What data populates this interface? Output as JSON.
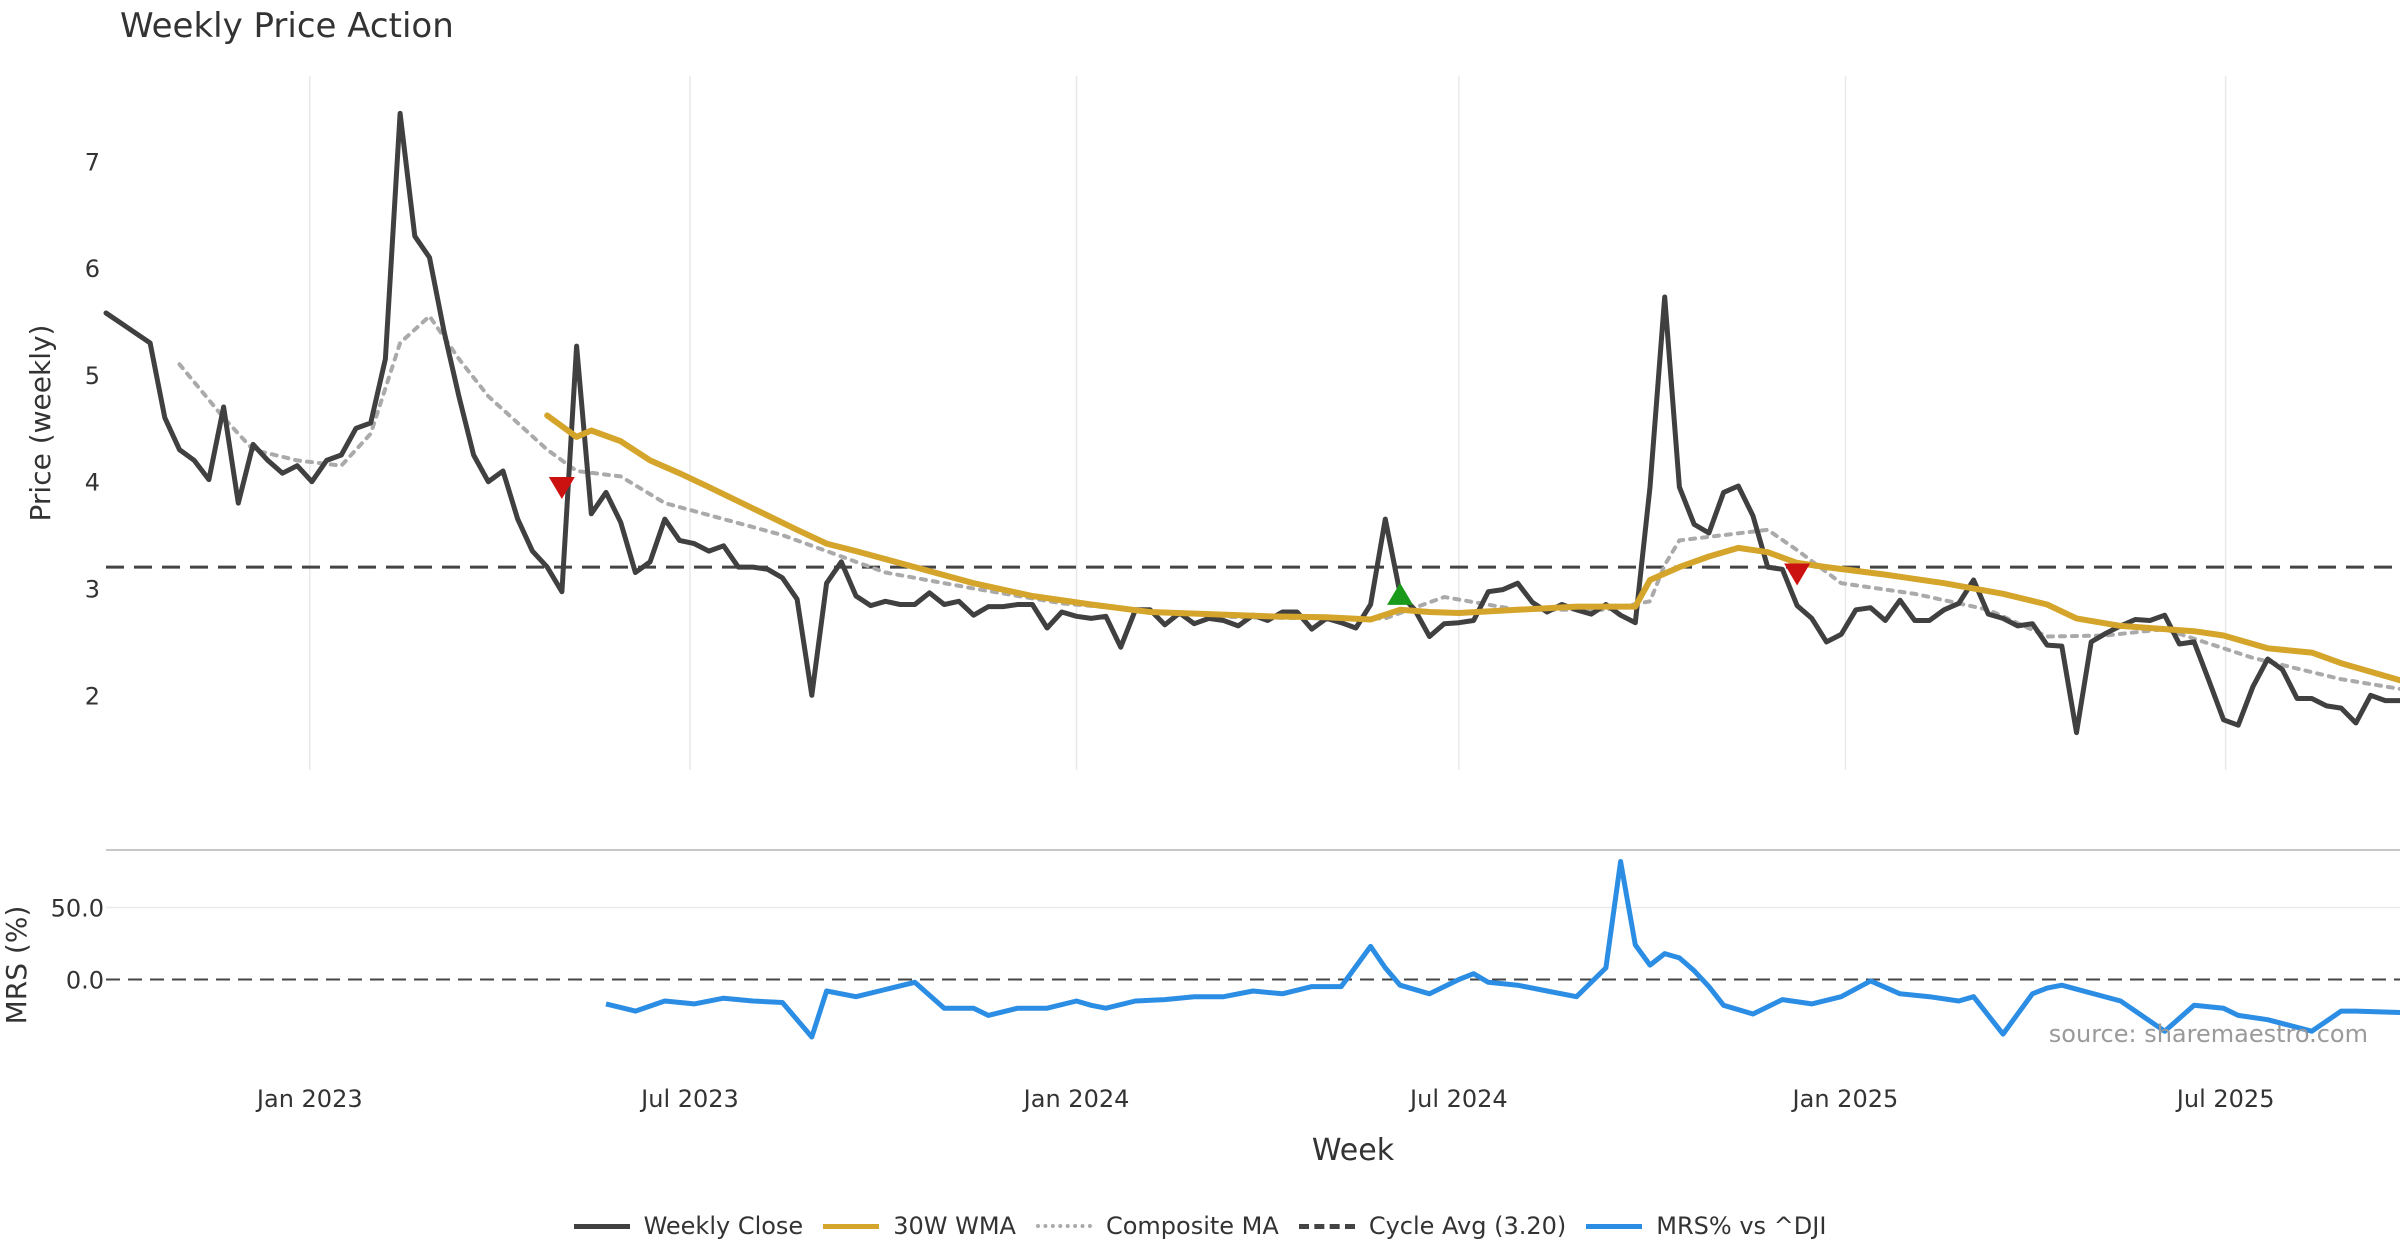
{
  "title": "Weekly Price Action",
  "watermark": "source: sharemaestro.com",
  "colors": {
    "close": "#404040",
    "wma": "#d4a52a",
    "composite": "#aaaaaa",
    "cycle": "#444444",
    "mrs": "#2b8de3",
    "sell": "#cc1111",
    "buy": "#1a9a1a",
    "grid": "#e9e9e9"
  },
  "legend": [
    {
      "label": "Weekly Close",
      "style": "solid",
      "color": "#404040"
    },
    {
      "label": "30W WMA",
      "style": "solid",
      "color": "#d4a52a"
    },
    {
      "label": "Composite MA",
      "style": "dotted",
      "color": "#aaaaaa"
    },
    {
      "label": "Cycle Avg (3.20)",
      "style": "dashed",
      "color": "#444444"
    },
    {
      "label": "MRS% vs ^DJI",
      "style": "solid",
      "color": "#2b8de3"
    }
  ],
  "chart_data": [
    {
      "type": "line",
      "title": "Weekly Price Action",
      "xlabel": "Week",
      "ylabel": "Price (weekly)",
      "x_type": "date",
      "xlim": [
        "2022-09-26",
        "2025-09-22"
      ],
      "ylim": [
        1.3,
        7.8
      ],
      "yticks": [
        2,
        3,
        4,
        5,
        6,
        7
      ],
      "xticks": [
        {
          "date": "2023-01-01",
          "label": "Jan 2023"
        },
        {
          "date": "2023-07-01",
          "label": "Jul 2023"
        },
        {
          "date": "2024-01-01",
          "label": "Jan 2024"
        },
        {
          "date": "2024-07-01",
          "label": "Jul 2024"
        },
        {
          "date": "2025-01-01",
          "label": "Jan 2025"
        },
        {
          "date": "2025-07-01",
          "label": "Jul 2025"
        }
      ],
      "grid": "vertical",
      "reference_line": {
        "name": "Cycle Avg (3.20)",
        "value": 3.2
      },
      "series": [
        {
          "name": "Weekly Close",
          "x": [
            "2022-09-26",
            "2022-10-17",
            "2022-10-24",
            "2022-10-31",
            "2022-11-07",
            "2022-11-14",
            "2022-11-21",
            "2022-11-28",
            "2022-12-05",
            "2022-12-12",
            "2022-12-19",
            "2022-12-26",
            "2023-01-02",
            "2023-01-09",
            "2023-01-16",
            "2023-01-23",
            "2023-01-30",
            "2023-02-06",
            "2023-02-13",
            "2023-02-20",
            "2023-02-27",
            "2023-03-06",
            "2023-03-13",
            "2023-03-20",
            "2023-03-27",
            "2023-04-03",
            "2023-04-10",
            "2023-04-17",
            "2023-04-24",
            "2023-05-01",
            "2023-05-08",
            "2023-05-15",
            "2023-05-22",
            "2023-05-29",
            "2023-06-05",
            "2023-06-12",
            "2023-06-19",
            "2023-06-26",
            "2023-07-03",
            "2023-07-10",
            "2023-07-17",
            "2023-07-24",
            "2023-07-31",
            "2023-08-07",
            "2023-08-14",
            "2023-08-21",
            "2023-08-28",
            "2023-09-04",
            "2023-09-11",
            "2023-09-18",
            "2023-09-25",
            "2023-10-02",
            "2023-10-09",
            "2023-10-16",
            "2023-10-23",
            "2023-10-30",
            "2023-11-06",
            "2023-11-13",
            "2023-11-20",
            "2023-11-27",
            "2023-12-04",
            "2023-12-11",
            "2023-12-18",
            "2023-12-25",
            "2024-01-01",
            "2024-01-08",
            "2024-01-15",
            "2024-01-22",
            "2024-01-29",
            "2024-02-05",
            "2024-02-12",
            "2024-02-19",
            "2024-02-26",
            "2024-03-04",
            "2024-03-11",
            "2024-03-18",
            "2024-03-25",
            "2024-04-01",
            "2024-04-08",
            "2024-04-15",
            "2024-04-22",
            "2024-04-29",
            "2024-05-06",
            "2024-05-13",
            "2024-05-20",
            "2024-05-27",
            "2024-06-03",
            "2024-06-10",
            "2024-06-17",
            "2024-06-24",
            "2024-07-01",
            "2024-07-08",
            "2024-07-15",
            "2024-07-22",
            "2024-07-29",
            "2024-08-05",
            "2024-08-12",
            "2024-08-19",
            "2024-08-26",
            "2024-09-02",
            "2024-09-09",
            "2024-09-16",
            "2024-09-23",
            "2024-09-30",
            "2024-10-07",
            "2024-10-14",
            "2024-10-21",
            "2024-10-28",
            "2024-11-04",
            "2024-11-11",
            "2024-11-18",
            "2024-11-25",
            "2024-12-02",
            "2024-12-09",
            "2024-12-16",
            "2024-12-23",
            "2024-12-30",
            "2025-01-06",
            "2025-01-13",
            "2025-01-20",
            "2025-01-27",
            "2025-02-03",
            "2025-02-10",
            "2025-02-17",
            "2025-02-24",
            "2025-03-03",
            "2025-03-10",
            "2025-03-17",
            "2025-03-24",
            "2025-03-31",
            "2025-04-07",
            "2025-04-14",
            "2025-04-21",
            "2025-04-28",
            "2025-05-05",
            "2025-05-12",
            "2025-05-19",
            "2025-05-26",
            "2025-06-02",
            "2025-06-09",
            "2025-06-16",
            "2025-06-23",
            "2025-06-30",
            "2025-07-07",
            "2025-07-14",
            "2025-07-21",
            "2025-07-28",
            "2025-08-04",
            "2025-08-11",
            "2025-08-18",
            "2025-08-25",
            "2025-09-01",
            "2025-09-08",
            "2025-09-15",
            "2025-09-22"
          ],
          "y": [
            5.58,
            5.3,
            4.6,
            4.3,
            4.2,
            4.02,
            4.7,
            3.8,
            4.35,
            4.2,
            4.08,
            4.15,
            4.0,
            4.2,
            4.25,
            4.5,
            4.55,
            5.15,
            7.45,
            6.3,
            6.1,
            5.4,
            4.8,
            4.25,
            4.0,
            4.1,
            3.65,
            3.35,
            3.2,
            2.97,
            5.27,
            3.7,
            3.9,
            3.62,
            3.15,
            3.25,
            3.65,
            3.45,
            3.42,
            3.35,
            3.4,
            3.2,
            3.2,
            3.18,
            3.1,
            2.9,
            2.0,
            3.05,
            3.25,
            2.93,
            2.84,
            2.88,
            2.85,
            2.85,
            2.96,
            2.85,
            2.88,
            2.75,
            2.83,
            2.83,
            2.85,
            2.85,
            2.63,
            2.78,
            2.74,
            2.72,
            2.74,
            2.45,
            2.8,
            2.8,
            2.66,
            2.77,
            2.67,
            2.72,
            2.7,
            2.65,
            2.75,
            2.7,
            2.78,
            2.78,
            2.62,
            2.72,
            2.68,
            2.63,
            2.85,
            3.65,
            2.95,
            2.8,
            2.55,
            2.67,
            2.68,
            2.7,
            2.97,
            2.99,
            3.05,
            2.87,
            2.78,
            2.85,
            2.8,
            2.76,
            2.85,
            2.75,
            2.68,
            3.95,
            5.73,
            3.95,
            3.6,
            3.52,
            3.9,
            3.96,
            3.68,
            3.2,
            3.18,
            2.84,
            2.72,
            2.5,
            2.57,
            2.8,
            2.82,
            2.7,
            2.89,
            2.7,
            2.7,
            2.8,
            2.86,
            3.08,
            2.76,
            2.72,
            2.65,
            2.67,
            2.47,
            2.46,
            1.65,
            2.5,
            2.58,
            2.65,
            2.71,
            2.7,
            2.75,
            2.48,
            2.5,
            2.14,
            1.77,
            1.72,
            2.08,
            2.34,
            2.24,
            1.97,
            1.97,
            1.9,
            1.88,
            1.74,
            2.0,
            1.95,
            1.95
          ]
        },
        {
          "name": "30W WMA",
          "x": [
            "2023-04-24",
            "2023-05-08",
            "2023-05-15",
            "2023-05-29",
            "2023-06-12",
            "2023-06-26",
            "2023-07-10",
            "2023-07-31",
            "2023-08-21",
            "2023-09-04",
            "2023-09-18",
            "2023-10-16",
            "2023-11-13",
            "2023-12-11",
            "2024-01-08",
            "2024-02-05",
            "2024-03-04",
            "2024-04-01",
            "2024-04-29",
            "2024-05-20",
            "2024-06-03",
            "2024-06-17",
            "2024-07-01",
            "2024-07-29",
            "2024-08-26",
            "2024-09-23",
            "2024-09-30",
            "2024-10-14",
            "2024-10-28",
            "2024-11-11",
            "2024-11-25",
            "2024-12-09",
            "2024-12-23",
            "2025-01-20",
            "2025-02-17",
            "2025-03-17",
            "2025-04-07",
            "2025-04-21",
            "2025-05-12",
            "2025-06-02",
            "2025-06-16",
            "2025-06-30",
            "2025-07-21",
            "2025-08-11",
            "2025-08-25",
            "2025-09-22"
          ],
          "y": [
            4.62,
            4.42,
            4.48,
            4.38,
            4.2,
            4.08,
            3.95,
            3.75,
            3.55,
            3.42,
            3.35,
            3.2,
            3.05,
            2.93,
            2.85,
            2.78,
            2.76,
            2.74,
            2.73,
            2.71,
            2.8,
            2.78,
            2.77,
            2.8,
            2.83,
            2.83,
            3.08,
            3.2,
            3.3,
            3.38,
            3.34,
            3.24,
            3.2,
            3.13,
            3.05,
            2.95,
            2.85,
            2.72,
            2.65,
            2.62,
            2.6,
            2.56,
            2.44,
            2.4,
            2.3,
            2.14
          ]
        },
        {
          "name": "Composite MA",
          "x": [
            "2022-10-31",
            "2022-11-21",
            "2022-12-05",
            "2022-12-26",
            "2023-01-16",
            "2023-01-30",
            "2023-02-13",
            "2023-02-27",
            "2023-03-13",
            "2023-03-27",
            "2023-04-24",
            "2023-05-08",
            "2023-05-29",
            "2023-06-19",
            "2023-07-17",
            "2023-08-14",
            "2023-09-04",
            "2023-10-02",
            "2023-11-13",
            "2023-12-25",
            "2024-02-05",
            "2024-03-18",
            "2024-04-29",
            "2024-05-27",
            "2024-06-10",
            "2024-06-24",
            "2024-07-29",
            "2024-09-09",
            "2024-09-30",
            "2024-10-07",
            "2024-10-14",
            "2024-11-04",
            "2024-11-25",
            "2024-12-09",
            "2024-12-30",
            "2025-02-03",
            "2025-03-10",
            "2025-04-07",
            "2025-05-05",
            "2025-06-02",
            "2025-07-14",
            "2025-08-25",
            "2025-09-22"
          ],
          "y": [
            5.1,
            4.6,
            4.3,
            4.2,
            4.15,
            4.45,
            5.3,
            5.55,
            5.15,
            4.8,
            4.3,
            4.1,
            4.05,
            3.8,
            3.65,
            3.5,
            3.35,
            3.15,
            3.0,
            2.86,
            2.79,
            2.73,
            2.72,
            2.72,
            2.82,
            2.92,
            2.8,
            2.8,
            2.88,
            3.22,
            3.45,
            3.5,
            3.55,
            3.36,
            3.05,
            2.95,
            2.8,
            2.55,
            2.56,
            2.62,
            2.35,
            2.15,
            2.06
          ]
        }
      ],
      "markers": [
        {
          "type": "sell",
          "x": "2023-05-01",
          "y": 3.95
        },
        {
          "type": "buy",
          "x": "2024-06-03",
          "y": 2.94
        },
        {
          "type": "sell",
          "x": "2024-12-09",
          "y": 3.14
        }
      ]
    },
    {
      "type": "line",
      "xlabel": "Week",
      "ylabel": "MRS (%)",
      "x_type": "date",
      "xlim": [
        "2022-09-26",
        "2025-09-22"
      ],
      "ylim": [
        -56,
        90
      ],
      "yticks": [
        0.0,
        50.0
      ],
      "ytick_labels": [
        "0.0",
        "50.0"
      ],
      "grid": "horizontal",
      "reference_line": {
        "value": 0
      },
      "series": [
        {
          "name": "MRS% vs ^DJI",
          "x": [
            "2023-05-22",
            "2023-06-05",
            "2023-06-19",
            "2023-07-03",
            "2023-07-17",
            "2023-07-31",
            "2023-08-14",
            "2023-08-28",
            "2023-09-04",
            "2023-09-18",
            "2023-10-02",
            "2023-10-16",
            "2023-10-30",
            "2023-11-13",
            "2023-11-20",
            "2023-12-04",
            "2023-12-18",
            "2024-01-01",
            "2024-01-08",
            "2024-01-15",
            "2024-01-29",
            "2024-02-12",
            "2024-02-26",
            "2024-03-11",
            "2024-03-25",
            "2024-04-08",
            "2024-04-22",
            "2024-05-06",
            "2024-05-20",
            "2024-05-27",
            "2024-06-03",
            "2024-06-17",
            "2024-07-01",
            "2024-07-08",
            "2024-07-15",
            "2024-07-29",
            "2024-08-12",
            "2024-08-26",
            "2024-09-09",
            "2024-09-16",
            "2024-09-23",
            "2024-09-30",
            "2024-10-07",
            "2024-10-14",
            "2024-10-21",
            "2024-10-28",
            "2024-11-04",
            "2024-11-18",
            "2024-12-02",
            "2024-12-16",
            "2024-12-30",
            "2025-01-13",
            "2025-01-27",
            "2025-02-10",
            "2025-02-24",
            "2025-03-03",
            "2025-03-17",
            "2025-03-31",
            "2025-04-07",
            "2025-04-14",
            "2025-05-12",
            "2025-05-19",
            "2025-06-02",
            "2025-06-16",
            "2025-06-30",
            "2025-07-07",
            "2025-07-21",
            "2025-08-11",
            "2025-08-25",
            "2025-09-01",
            "2025-09-22"
          ],
          "y": [
            -17,
            -22,
            -15,
            -17,
            -13,
            -15,
            -16,
            -40,
            -8,
            -12,
            -7,
            -2,
            -20,
            -20,
            -25,
            -20,
            -20,
            -15,
            -18,
            -20,
            -15,
            -14,
            -12,
            -12,
            -8,
            -10,
            -5,
            -5,
            23,
            8,
            -4,
            -10,
            0,
            4,
            -2,
            -4,
            -8,
            -12,
            8,
            82,
            24,
            10,
            18,
            15,
            6,
            -5,
            -18,
            -24,
            -14,
            -17,
            -12,
            -1,
            -10,
            -12,
            -15,
            -12,
            -38,
            -10,
            -6,
            -4,
            -15,
            -22,
            -36,
            -18,
            -20,
            -25,
            -28,
            -36,
            -22,
            -22,
            -23
          ]
        }
      ]
    }
  ]
}
